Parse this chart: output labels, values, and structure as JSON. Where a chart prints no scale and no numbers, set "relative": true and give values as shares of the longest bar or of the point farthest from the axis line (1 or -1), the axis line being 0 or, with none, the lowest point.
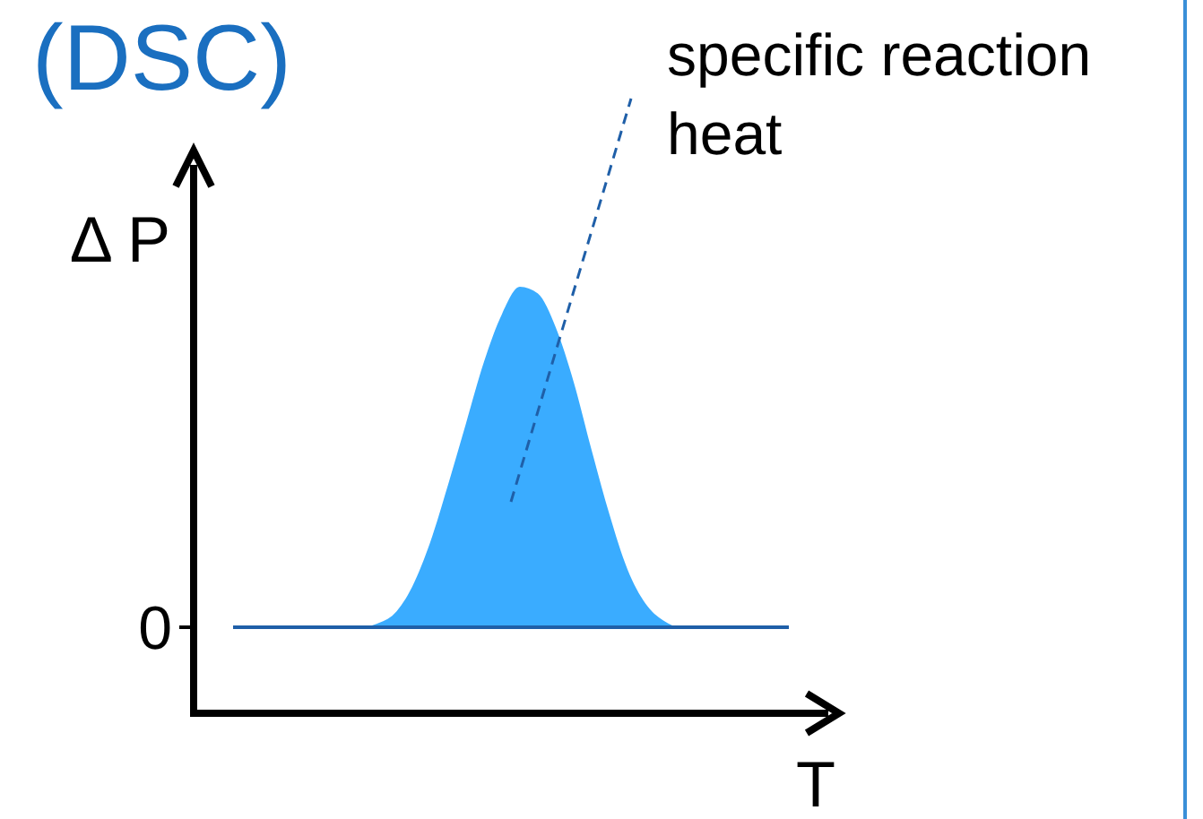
{
  "chart_data": {
    "type": "area",
    "title": "(DSC)",
    "xlabel": "T",
    "ylabel": "Δ P",
    "relative": true,
    "categories": [
      null,
      null,
      null,
      null,
      null,
      null,
      null,
      null,
      null,
      null,
      null,
      null,
      null,
      null,
      null,
      null,
      null,
      null,
      null,
      null,
      null,
      null,
      null,
      null,
      null,
      null,
      null,
      null,
      null,
      null,
      null,
      null
    ],
    "series": [
      {
        "color": "#3aacff",
        "values": [
          0,
          0,
          0,
          0,
          0,
          0,
          0,
          0,
          0.01,
          0.04,
          0.12,
          0.25,
          0.42,
          0.6,
          0.78,
          0.92,
          1,
          0.98,
          0.88,
          0.72,
          0.52,
          0.33,
          0.17,
          0.07,
          0.02,
          0,
          0,
          0,
          0,
          0,
          0,
          0
        ]
      }
    ],
    "ref_lines": [
      {
        "axis": "y",
        "value": 0,
        "label": "0",
        "color": "#1f5fa8",
        "line_style": "solid"
      }
    ],
    "annotations": [
      "specific reaction heat"
    ]
  }
}
